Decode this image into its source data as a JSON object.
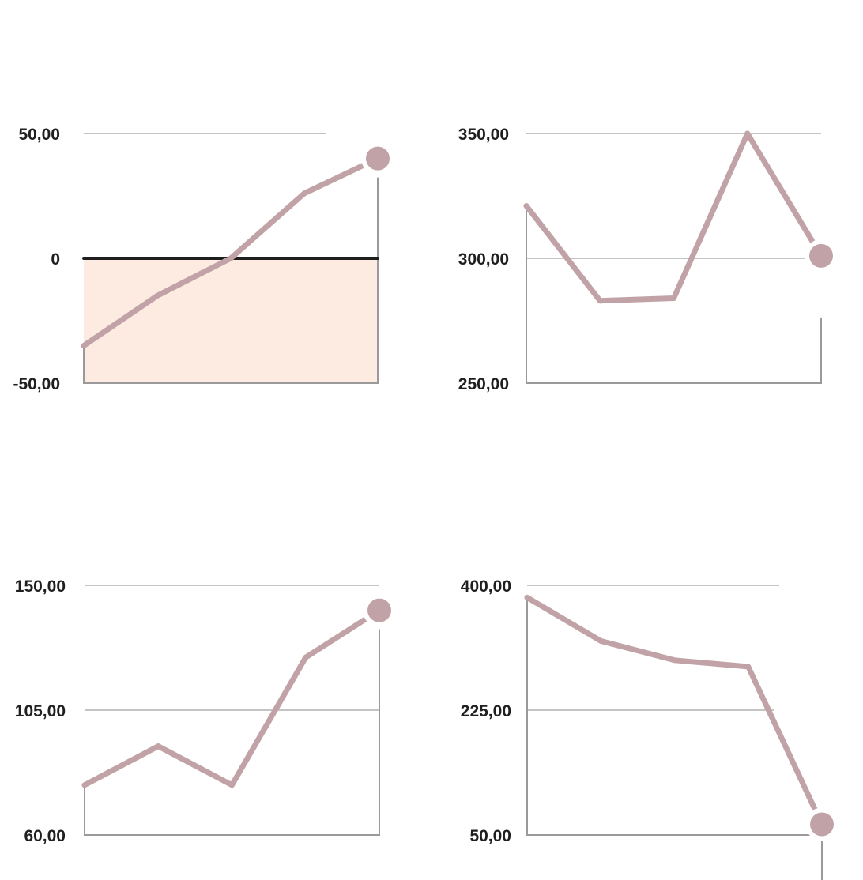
{
  "colors": {
    "series": "#c1a3a7",
    "negative_fill": "#fdebe2",
    "zero_line": "#1e1e1e",
    "grid": "#8a8a8a",
    "axis": "#9a9a9a"
  },
  "chart_data": [
    {
      "type": "line",
      "x": [
        0,
        1,
        2,
        3,
        4
      ],
      "values": [
        -35,
        -15,
        0,
        26,
        40
      ],
      "ylim": [
        -50,
        50
      ],
      "ticks": [
        50,
        0,
        -50
      ],
      "tick_labels": [
        "50,00",
        "0",
        "-50,00"
      ],
      "zero_line": true,
      "negative_fill": true,
      "title": "",
      "xlabel": "",
      "ylabel": ""
    },
    {
      "type": "line",
      "x": [
        0,
        1,
        2,
        3,
        4
      ],
      "values": [
        321,
        283,
        284,
        350,
        301
      ],
      "ylim": [
        250,
        350
      ],
      "ticks": [
        350,
        300,
        250
      ],
      "tick_labels": [
        "350,00",
        "300,00",
        "250,00"
      ],
      "zero_line": false,
      "negative_fill": false,
      "title": "",
      "xlabel": "",
      "ylabel": ""
    },
    {
      "type": "line",
      "x": [
        0,
        1,
        2,
        3,
        4
      ],
      "values": [
        78,
        92,
        78,
        124,
        141
      ],
      "ylim": [
        60,
        150
      ],
      "ticks": [
        150,
        105,
        60
      ],
      "tick_labels": [
        "150,00",
        "105,00",
        "60,00"
      ],
      "zero_line": false,
      "negative_fill": false,
      "title": "",
      "xlabel": "",
      "ylabel": ""
    },
    {
      "type": "line",
      "x": [
        0,
        1,
        2,
        3,
        4
      ],
      "values": [
        383,
        322,
        295,
        286,
        65
      ],
      "ylim": [
        50,
        400
      ],
      "ticks": [
        400,
        225,
        50
      ],
      "tick_labels": [
        "400,00",
        "225,00",
        "50,00"
      ],
      "zero_line": false,
      "negative_fill": false,
      "title": "",
      "xlabel": "",
      "ylabel": ""
    }
  ]
}
